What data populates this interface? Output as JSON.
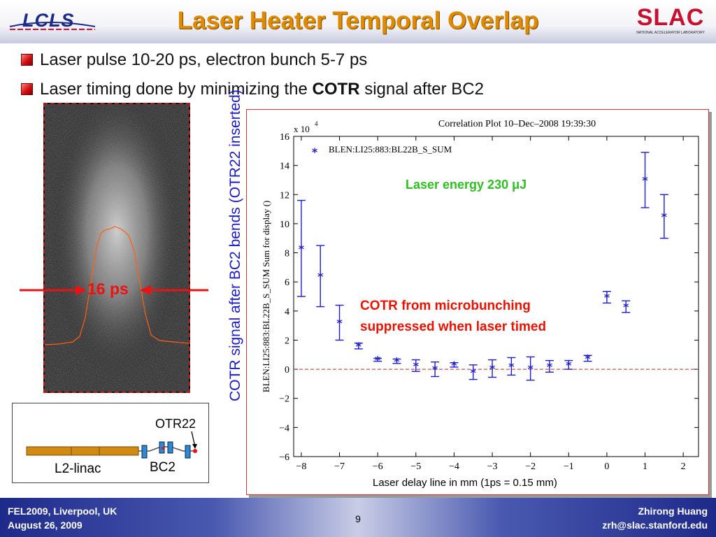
{
  "header": {
    "title": "Laser Heater Temporal Overlap",
    "lcls_logo": "LCLS",
    "slac_logo": "SLAC",
    "slac_subtitle": "NATIONAL ACCELERATOR LABORATORY"
  },
  "bullets": [
    {
      "text": "Laser pulse 10-20 ps, electron bunch 5-7 ps"
    },
    {
      "prefix": "Laser timing done by minimizing the ",
      "bold": "COTR",
      "suffix": " signal after BC2"
    }
  ],
  "streak_image": {
    "width_label": "16 ps"
  },
  "beamline": {
    "otr_label": "OTR22",
    "linac_label": "L2-linac",
    "bc2_label": "BC2"
  },
  "vertical_caption": "COTR signal after BC2 bends (OTR22 inserted)",
  "chart_data": {
    "type": "scatter",
    "title": "Correlation Plot 10–Dec–2008 19:39:30",
    "ylabel": "BLEN:LI25:883:BL22B_S_SUM Sum for display ()",
    "xlabel": "Laser delay line in mm (1ps = 0.15 mm)",
    "y_multiplier": "x 10",
    "y_multiplier_exp": "4",
    "xlim": [
      -8.2,
      2.4
    ],
    "ylim": [
      -6,
      16
    ],
    "xticks": [
      -8,
      -7,
      -6,
      -5,
      -4,
      -3,
      -2,
      -1,
      0,
      1,
      2
    ],
    "yticks": [
      -6,
      -4,
      -2,
      0,
      2,
      4,
      6,
      8,
      10,
      12,
      14,
      16
    ],
    "legend": "top-left",
    "series": [
      {
        "name": "BLEN:LI25:883:BL22B_S_SUM",
        "color": "#1c1cd6",
        "x": [
          -8.0,
          -7.5,
          -7.0,
          -6.5,
          -6.0,
          -5.5,
          -5.0,
          -4.5,
          -4.0,
          -3.5,
          -3.0,
          -2.5,
          -2.0,
          -1.5,
          -1.0,
          -0.5,
          0.0,
          0.5,
          1.0,
          1.5
        ],
        "y": [
          8.3,
          6.4,
          3.2,
          1.6,
          0.65,
          0.55,
          0.25,
          0.0,
          0.3,
          -0.2,
          0.05,
          0.2,
          0.05,
          0.2,
          0.3,
          0.75,
          4.95,
          4.3,
          13.0,
          10.5
        ],
        "err": [
          3.3,
          2.1,
          1.2,
          0.2,
          0.1,
          0.15,
          0.4,
          0.5,
          0.15,
          0.5,
          0.6,
          0.6,
          0.8,
          0.4,
          0.3,
          0.2,
          0.4,
          0.4,
          1.9,
          1.5
        ]
      }
    ],
    "reference_line": {
      "y": 0,
      "color": "#cc2020",
      "style": "dashed"
    },
    "annotations": [
      {
        "text": "Laser energy 230 μJ",
        "color": "#2ec020"
      },
      {
        "text": "COTR from microbunching",
        "color": "#e10000"
      },
      {
        "text": "suppressed when laser timed",
        "color": "#e10000"
      }
    ]
  },
  "footer": {
    "left_line1": "FEL2009, Liverpool, UK",
    "left_line2": "August 26, 2009",
    "page": "9",
    "right_line1": "Zhirong Huang",
    "right_line2": "zrh@slac.stanford.edu"
  }
}
